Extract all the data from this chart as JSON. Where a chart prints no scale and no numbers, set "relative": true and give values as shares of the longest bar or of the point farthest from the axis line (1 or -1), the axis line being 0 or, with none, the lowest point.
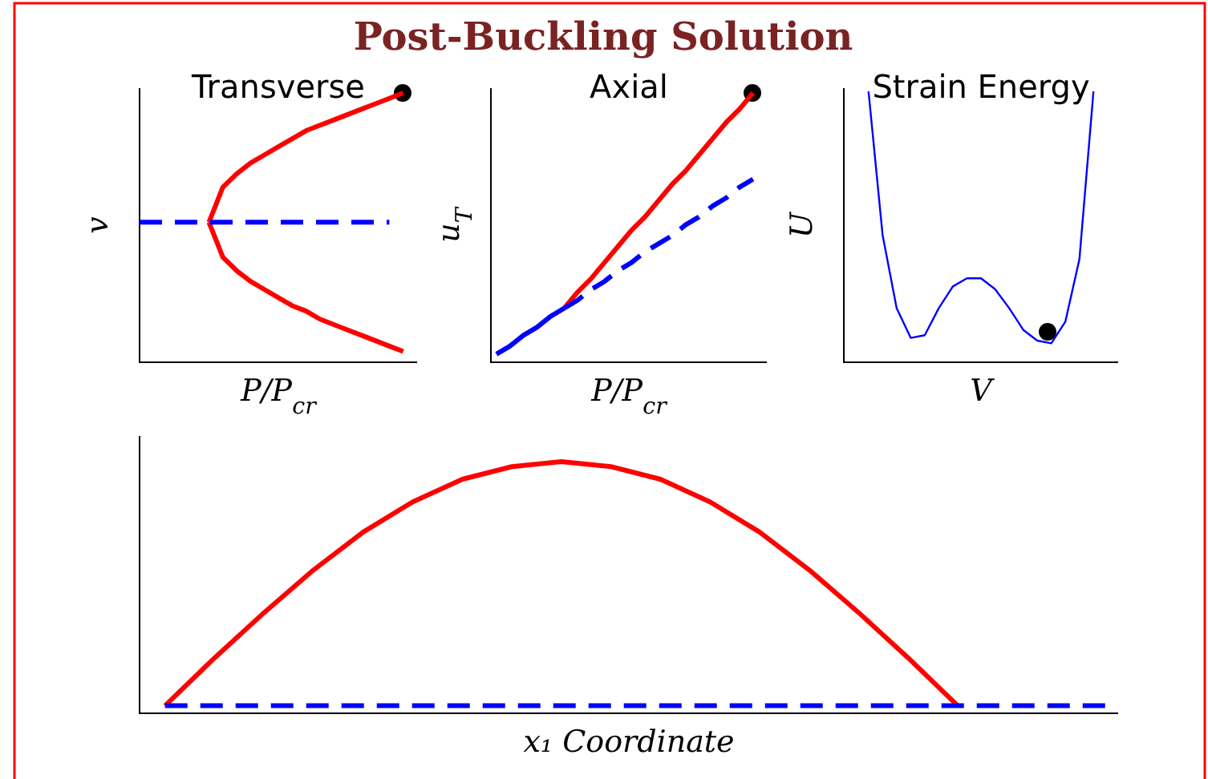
{
  "chart_data": [
    {
      "type": "other",
      "title": "Post-Buckling Solution"
    },
    {
      "type": "line",
      "title": "Transverse",
      "xlabel": "P/P$_{cr}$",
      "ylabel": "v",
      "relative": true,
      "categories": [
        null,
        null,
        null,
        null,
        null,
        null,
        null,
        null,
        null,
        null,
        null,
        null,
        null,
        null,
        null,
        null,
        null,
        null,
        null,
        null
      ],
      "series": [
        {
          "color": "#ff0000",
          "line_style": "solid",
          "values": [
            null,
            null,
            null,
            null,
            null,
            0.52,
            0.65,
            0.7,
            0.74,
            0.77,
            0.8,
            0.83,
            0.86,
            0.88,
            0.9,
            0.92,
            0.94,
            0.96,
            0.98,
            1
          ]
        },
        {
          "color": "#ff0000",
          "line_style": "solid",
          "values": [
            null,
            null,
            null,
            null,
            null,
            0.52,
            0.39,
            0.34,
            0.3,
            0.27,
            0.24,
            0.21,
            0.19,
            0.16,
            0.14,
            0.12,
            0.1,
            0.08,
            0.06,
            0.04
          ]
        },
        {
          "color": "#0000ff",
          "line_style": "dashed",
          "values": [
            0.52,
            0.52,
            0.52,
            0.52,
            0.52,
            0.52,
            0.52,
            0.52,
            0.52,
            0.52,
            0.52,
            0.52,
            0.52,
            0.52,
            0.52,
            0.52,
            0.52,
            0.52,
            0.52,
            null
          ]
        }
      ]
    },
    {
      "type": "line",
      "title": "Axial",
      "xlabel": "P/P$_{cr}$",
      "ylabel": "u$_{T}$",
      "relative": true,
      "categories": [
        null,
        null,
        null,
        null,
        null,
        null,
        null,
        null,
        null,
        null,
        null,
        null,
        null,
        null,
        null,
        null,
        null,
        null,
        null,
        null
      ],
      "series": [
        {
          "color": "#ff0000",
          "line_style": "solid",
          "values": [
            null,
            null,
            null,
            null,
            null,
            0.2,
            0.26,
            0.31,
            0.37,
            0.43,
            0.49,
            0.54,
            0.6,
            0.66,
            0.71,
            0.77,
            0.83,
            0.89,
            0.94,
            1
          ]
        },
        {
          "color": "#0000ff",
          "line_style": "solid",
          "values": [
            0.03,
            0.06,
            0.1,
            0.13,
            0.17,
            0.2,
            null,
            null,
            null,
            null,
            null,
            null,
            null,
            null,
            null,
            null,
            null,
            null,
            null,
            null
          ]
        },
        {
          "color": "#0000ff",
          "line_style": "dashed",
          "values": [
            null,
            null,
            null,
            null,
            null,
            0.2,
            0.23,
            0.27,
            0.3,
            0.34,
            0.37,
            0.41,
            0.44,
            0.47,
            0.51,
            0.54,
            0.58,
            0.61,
            0.65,
            0.68
          ]
        }
      ]
    },
    {
      "type": "line",
      "title": "Strain Energy",
      "xlabel": "V",
      "ylabel": "U",
      "relative": true,
      "categories": [
        null,
        null,
        null,
        null,
        null,
        null,
        null,
        null,
        null,
        null,
        null,
        null,
        null,
        null,
        null,
        null,
        null
      ],
      "series": [
        {
          "color": "#0000ff",
          "line_style": "solid",
          "values": [
            1,
            0.47,
            0.2,
            0.09,
            0.1,
            0.2,
            0.28,
            0.31,
            0.31,
            0.27,
            0.2,
            0.12,
            0.08,
            0.07,
            0.15,
            0.38,
            1
          ]
        }
      ]
    },
    {
      "type": "line",
      "xlabel": "x₁ Coordinate",
      "relative": true,
      "categories": [
        null,
        null,
        null,
        null,
        null,
        null,
        null,
        null,
        null,
        null,
        null,
        null,
        null,
        null,
        null,
        null,
        null,
        null,
        null,
        null
      ],
      "series": [
        {
          "color": "#ff0000",
          "line_style": "solid",
          "values": [
            0.03,
            0.22,
            0.4,
            0.57,
            0.72,
            0.84,
            0.93,
            0.98,
            1,
            0.98,
            0.93,
            0.84,
            0.72,
            0.57,
            0.4,
            0.22,
            0.03,
            null,
            null,
            null
          ]
        },
        {
          "color": "#0000ff",
          "line_style": "dashed",
          "values": [
            0.03,
            0.03,
            0.03,
            0.03,
            0.03,
            0.03,
            0.03,
            0.03,
            0.03,
            0.03,
            0.03,
            0.03,
            0.03,
            0.03,
            0.03,
            0.03,
            0.03,
            0.03,
            0.03,
            0.03
          ]
        }
      ]
    }
  ]
}
